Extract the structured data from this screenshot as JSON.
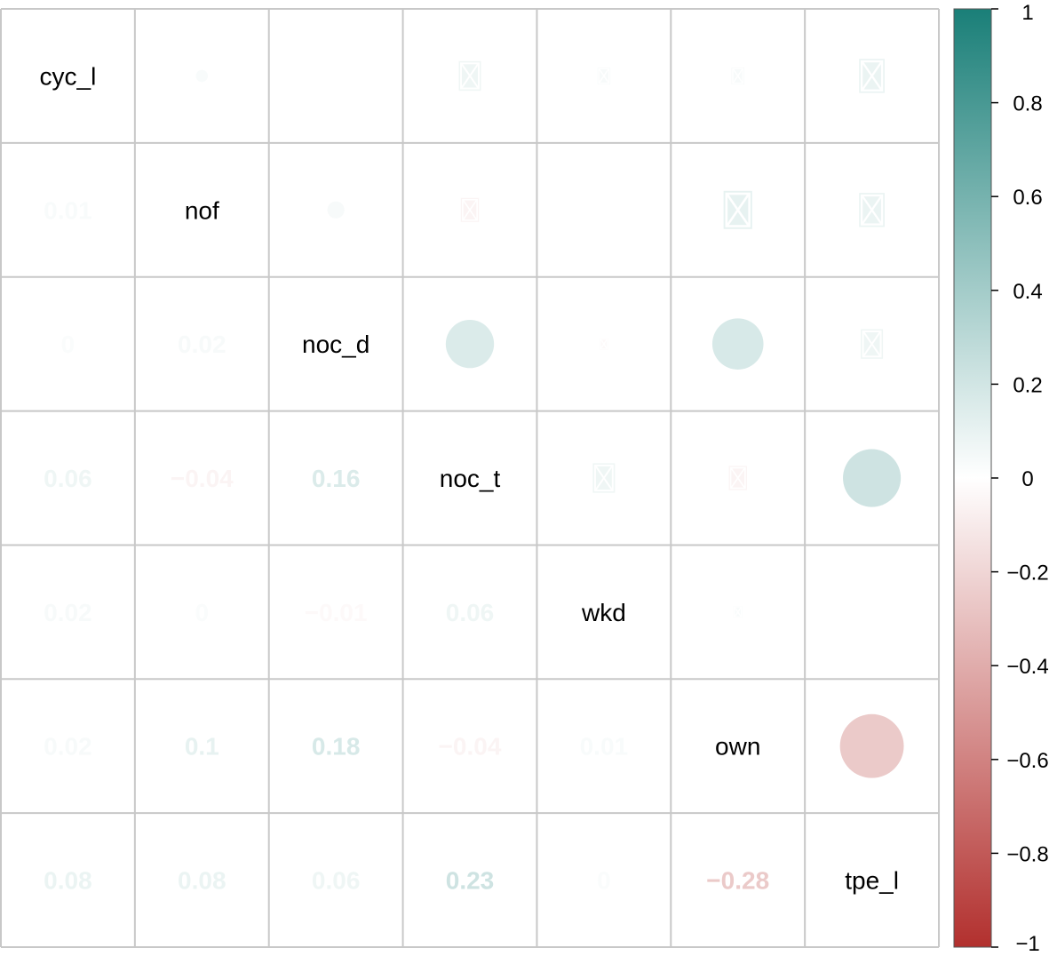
{
  "chart_data": {
    "type": "heatmap",
    "variables": [
      "cyc_l",
      "nof",
      "noc_d",
      "noc_t",
      "wkd",
      "own",
      "tpe_l"
    ],
    "correlations": [
      [
        1,
        0.01,
        0,
        0.06,
        0.02,
        0.02,
        0.08
      ],
      [
        0.01,
        1,
        0.02,
        -0.04,
        0,
        0.1,
        0.08
      ],
      [
        0,
        0.02,
        1,
        0.16,
        -0.01,
        0.18,
        0.06
      ],
      [
        0.06,
        -0.04,
        0.16,
        1,
        0.06,
        -0.04,
        0.23
      ],
      [
        0.02,
        0,
        -0.01,
        0.06,
        1,
        0.01,
        0
      ],
      [
        0.02,
        0.1,
        0.18,
        -0.04,
        0.01,
        1,
        -0.28
      ],
      [
        0.08,
        0.08,
        0.06,
        0.23,
        0,
        -0.28,
        1
      ]
    ],
    "lower_labels": [
      [
        null,
        null,
        null,
        null,
        null,
        null,
        null
      ],
      [
        "0.01",
        null,
        null,
        null,
        null,
        null,
        null
      ],
      [
        "0",
        "0.02",
        null,
        null,
        null,
        null,
        null
      ],
      [
        "0.06",
        "−0.04",
        "0.16",
        null,
        null,
        null,
        null
      ],
      [
        "0.02",
        "0",
        "−0.01",
        "0.06",
        null,
        null,
        null
      ],
      [
        "0.02",
        "0.1",
        "0.18",
        "−0.04",
        "0.01",
        null,
        null
      ],
      [
        "0.08",
        "0.08",
        "0.06",
        "0.23",
        "0",
        "−0.28",
        null
      ]
    ],
    "insignificant": [
      [
        false,
        false,
        false,
        true,
        true,
        true,
        true
      ],
      [
        false,
        false,
        false,
        true,
        false,
        true,
        true
      ],
      [
        false,
        false,
        false,
        false,
        true,
        false,
        true
      ],
      [
        false,
        false,
        false,
        false,
        true,
        true,
        false
      ],
      [
        false,
        false,
        false,
        false,
        false,
        true,
        false
      ],
      [
        false,
        false,
        false,
        false,
        false,
        false,
        false
      ],
      [
        false,
        false,
        false,
        false,
        false,
        false,
        false
      ]
    ],
    "upper_glyph": "circle",
    "insignificant_mark": "cross",
    "colorbar": {
      "ticks": [
        "1",
        "0.8",
        "0.6",
        "0.4",
        "0.2",
        "0",
        "−0.2",
        "−0.4",
        "−0.6",
        "−0.8",
        "−1"
      ],
      "tick_values": [
        1,
        0.8,
        0.6,
        0.4,
        0.2,
        0,
        -0.2,
        -0.4,
        -0.6,
        -0.8,
        -1
      ],
      "range": [
        -1,
        1
      ]
    },
    "colors": {
      "positive": "#1a7f78",
      "neutral": "#ffffff",
      "negative": "#b2302e",
      "grid": "#c8c8c8",
      "diagonal_text": "#000000"
    },
    "grid": true,
    "legend_position": "right"
  }
}
